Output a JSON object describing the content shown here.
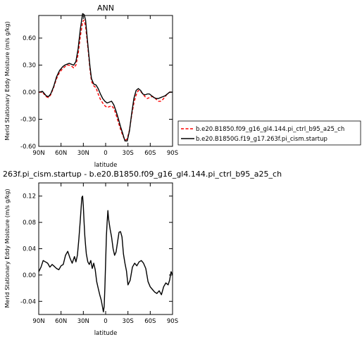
{
  "chart_data": [
    {
      "type": "line",
      "title": "ANN",
      "subtitle": "",
      "xlabel": "latitude",
      "ylabel": "Merid Stationary Eddy Moisture (m/s g/kg)",
      "xlim": [
        90,
        -90
      ],
      "ylim": [
        -0.6,
        0.85
      ],
      "x_ticks": [
        90,
        60,
        30,
        0,
        -30,
        -60,
        -90
      ],
      "x_tick_labels": [
        "90N",
        "60N",
        "30N",
        "0",
        "30S",
        "60S",
        "90S"
      ],
      "y_ticks": [
        -0.6,
        -0.3,
        0.0,
        0.3,
        0.6
      ],
      "y_tick_labels": [
        "-0.60",
        "-0.30",
        "0.00",
        "0.30",
        "0.60"
      ],
      "grid": false,
      "legend_position": "right",
      "series": [
        {
          "name": "b.e20.B1850.f09_g16_gl4.144.pi_ctrl_b95_a25_ch",
          "color": "#ff0000",
          "style": "dashed",
          "x": [
            90,
            85,
            80,
            77,
            74,
            70,
            66,
            62,
            58,
            55,
            52,
            49,
            46,
            43,
            40,
            37,
            34,
            31,
            29,
            27,
            25,
            23,
            21,
            19,
            16,
            13,
            10,
            7,
            4,
            1,
            -2,
            -5,
            -8,
            -11,
            -14,
            -17,
            -20,
            -23,
            -26,
            -29,
            -32,
            -35,
            -38,
            -41,
            -44,
            -47,
            -50,
            -53,
            -56,
            -59,
            -62,
            -65,
            -68,
            -71,
            -74,
            -77,
            -80,
            -83,
            -86,
            -90
          ],
          "y": [
            0.0,
            0.0,
            -0.05,
            -0.06,
            -0.03,
            0.05,
            0.15,
            0.22,
            0.26,
            0.28,
            0.3,
            0.3,
            0.29,
            0.27,
            0.3,
            0.42,
            0.62,
            0.78,
            0.8,
            0.73,
            0.58,
            0.42,
            0.25,
            0.12,
            0.07,
            0.05,
            -0.02,
            -0.08,
            -0.12,
            -0.15,
            -0.17,
            -0.16,
            -0.15,
            -0.18,
            -0.25,
            -0.33,
            -0.41,
            -0.48,
            -0.53,
            -0.52,
            -0.42,
            -0.26,
            -0.12,
            -0.03,
            0.02,
            0.01,
            -0.02,
            -0.05,
            -0.07,
            -0.06,
            -0.05,
            -0.05,
            -0.08,
            -0.1,
            -0.1,
            -0.08,
            -0.05,
            -0.02,
            0.0,
            0.0
          ]
        },
        {
          "name": "b.e20.B1850G.f19_g17.263f.pi_cism.startup",
          "color": "#000000",
          "style": "solid",
          "x": [
            90,
            85,
            80,
            77,
            74,
            70,
            66,
            62,
            58,
            55,
            52,
            49,
            46,
            43,
            40,
            37,
            34,
            31,
            29,
            27,
            25,
            23,
            21,
            19,
            16,
            13,
            10,
            7,
            4,
            1,
            -2,
            -5,
            -8,
            -11,
            -14,
            -17,
            -20,
            -23,
            -26,
            -29,
            -32,
            -35,
            -38,
            -41,
            -44,
            -47,
            -50,
            -53,
            -56,
            -59,
            -62,
            -65,
            -68,
            -71,
            -74,
            -77,
            -80,
            -83,
            -86,
            -90
          ],
          "y": [
            0.0,
            0.01,
            -0.04,
            -0.05,
            -0.02,
            0.06,
            0.17,
            0.24,
            0.28,
            0.3,
            0.31,
            0.32,
            0.31,
            0.3,
            0.34,
            0.48,
            0.7,
            0.87,
            0.86,
            0.8,
            0.62,
            0.45,
            0.28,
            0.15,
            0.09,
            0.08,
            0.04,
            -0.02,
            -0.07,
            -0.1,
            -0.12,
            -0.11,
            -0.1,
            -0.14,
            -0.21,
            -0.29,
            -0.38,
            -0.46,
            -0.54,
            -0.54,
            -0.43,
            -0.24,
            -0.07,
            0.02,
            0.04,
            0.02,
            -0.02,
            -0.03,
            -0.02,
            -0.02,
            -0.04,
            -0.06,
            -0.07,
            -0.07,
            -0.06,
            -0.05,
            -0.04,
            -0.02,
            0.0,
            0.0
          ]
        }
      ]
    },
    {
      "type": "line",
      "title": "263f.pi_cism.startup - b.e20.B1850.f09_g16_gl4.144.pi_ctrl_b95_a25_ch",
      "subtitle": "",
      "xlabel": "latitude",
      "ylabel": "Merid Stationary Eddy Moisture (m/s g/kg)",
      "xlim": [
        90,
        -90
      ],
      "ylim": [
        -0.06,
        0.14
      ],
      "x_ticks": [
        90,
        60,
        30,
        0,
        -30,
        -60,
        -90
      ],
      "x_tick_labels": [
        "90N",
        "60N",
        "30N",
        "0",
        "30S",
        "60S",
        "90S"
      ],
      "y_ticks": [
        -0.04,
        0.0,
        0.04,
        0.08,
        0.12
      ],
      "y_tick_labels": [
        "-0.04",
        "0.00",
        "0.04",
        "0.08",
        "0.12"
      ],
      "grid": false,
      "series": [
        {
          "name": "",
          "color": "#000000",
          "style": "solid",
          "x": [
            90,
            87,
            84,
            81,
            78,
            75,
            72,
            69,
            66,
            63,
            60,
            57,
            54,
            51,
            48,
            45,
            42,
            40,
            38,
            36,
            34,
            32,
            31,
            30,
            29,
            28,
            27,
            26,
            24,
            22,
            20,
            18,
            16,
            14,
            12,
            10,
            8,
            6,
            4,
            3,
            2,
            1,
            0,
            -1,
            -2,
            -3,
            -4,
            -6,
            -8,
            -10,
            -12,
            -14,
            -16,
            -18,
            -20,
            -22,
            -24,
            -26,
            -28,
            -30,
            -33,
            -36,
            -39,
            -42,
            -45,
            -48,
            -51,
            -54,
            -57,
            -60,
            -63,
            -66,
            -69,
            -72,
            -75,
            -78,
            -81,
            -84,
            -86,
            -88,
            -90
          ],
          "y": [
            0.005,
            0.012,
            0.022,
            0.02,
            0.018,
            0.012,
            0.016,
            0.013,
            0.01,
            0.008,
            0.014,
            0.016,
            0.03,
            0.036,
            0.026,
            0.018,
            0.028,
            0.02,
            0.03,
            0.055,
            0.085,
            0.118,
            0.12,
            0.105,
            0.08,
            0.06,
            0.045,
            0.032,
            0.02,
            0.016,
            0.022,
            0.01,
            0.018,
            0.008,
            -0.01,
            -0.02,
            -0.03,
            -0.038,
            -0.05,
            -0.056,
            -0.048,
            -0.02,
            0.02,
            0.06,
            0.08,
            0.098,
            0.085,
            0.07,
            0.058,
            0.04,
            0.03,
            0.035,
            0.05,
            0.065,
            0.066,
            0.058,
            0.032,
            0.018,
            0.006,
            -0.015,
            -0.008,
            0.012,
            0.018,
            0.014,
            0.02,
            0.022,
            0.018,
            0.01,
            -0.01,
            -0.018,
            -0.022,
            -0.026,
            -0.028,
            -0.024,
            -0.03,
            -0.018,
            -0.012,
            -0.015,
            -0.008,
            0.005,
            0.0
          ]
        }
      ]
    }
  ]
}
